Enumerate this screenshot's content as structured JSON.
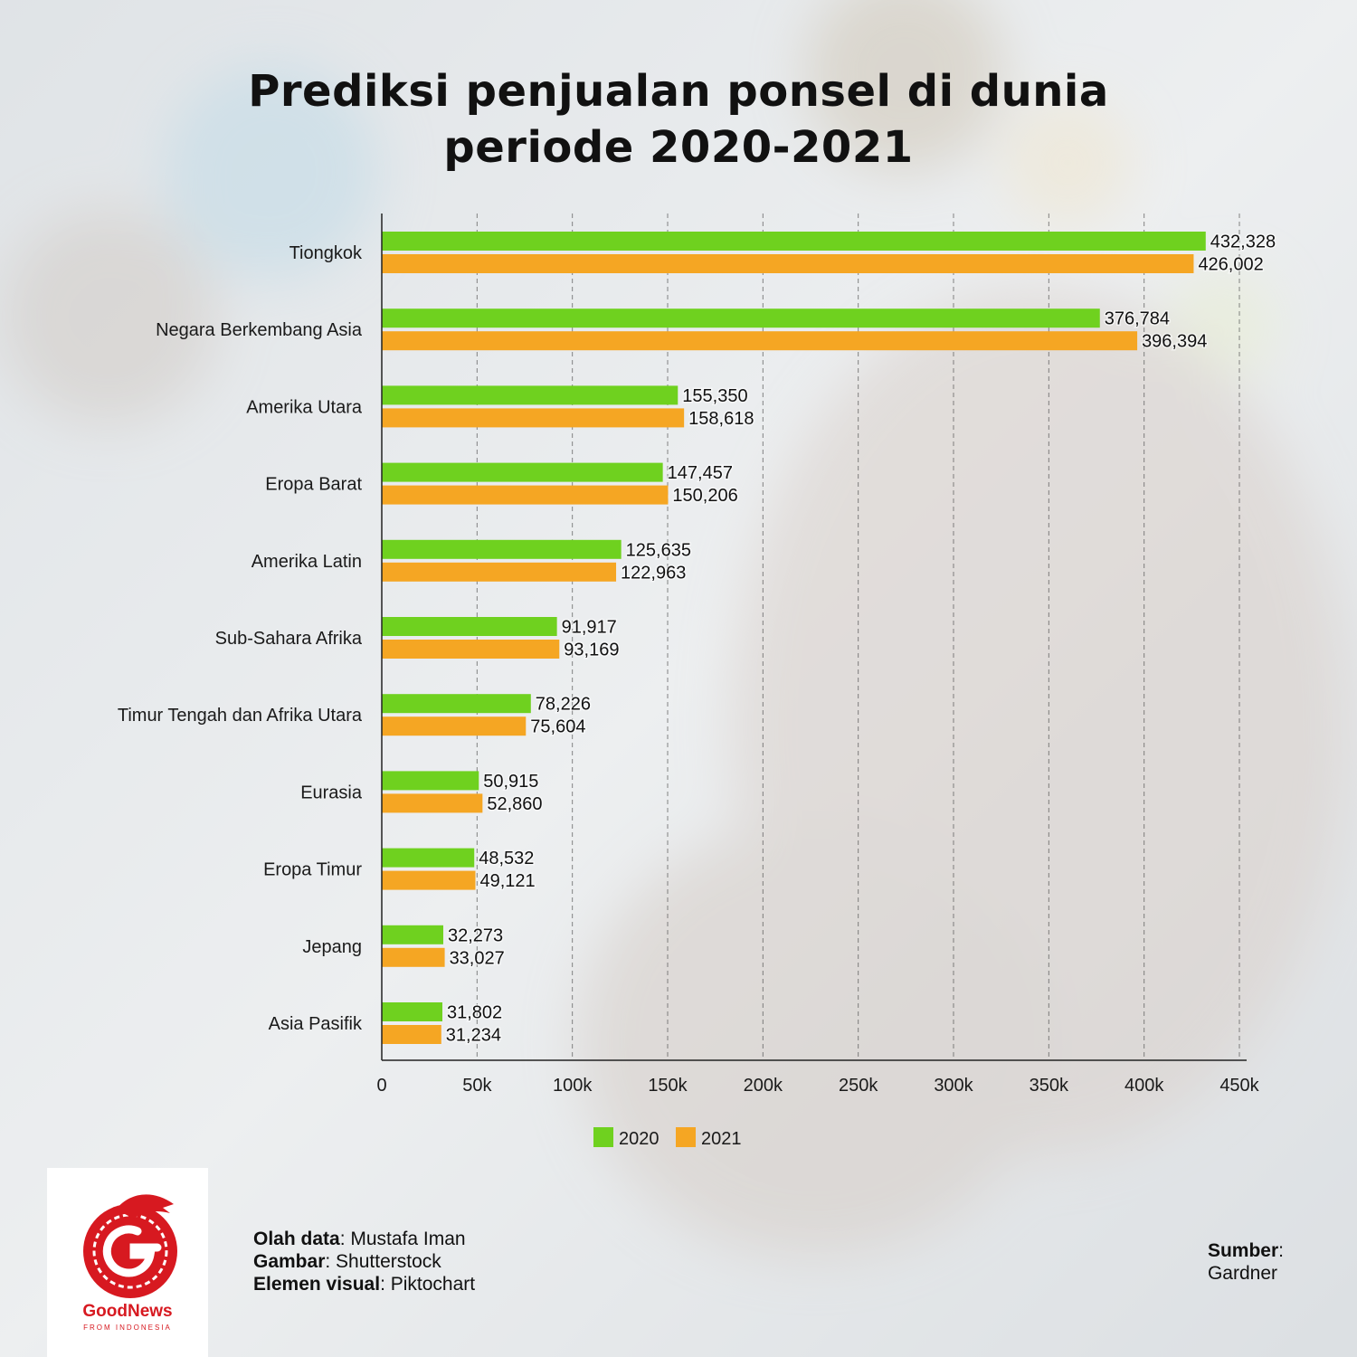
{
  "title_line1": "Prediksi penjualan ponsel di dunia",
  "title_line2": "periode 2020-2021",
  "colors": {
    "series_2020": "#6fd11f",
    "series_2021": "#f5a623",
    "logo_red": "#d71920"
  },
  "chart_data": {
    "type": "bar",
    "orientation": "horizontal",
    "categories": [
      "Tiongkok",
      "Negara Berkembang Asia",
      "Amerika Utara",
      "Eropa Barat",
      "Amerika Latin",
      "Sub-Sahara Afrika",
      "Timur Tengah dan Afrika Utara",
      "Eurasia",
      "Eropa Timur",
      "Jepang",
      "Asia Pasifik"
    ],
    "series": [
      {
        "name": "2020",
        "values": [
          432328,
          376784,
          155350,
          147457,
          125635,
          91917,
          78226,
          50915,
          48532,
          32273,
          31802
        ],
        "labels": [
          "432,328",
          "376,784",
          "155,350",
          "147,457",
          "125,635",
          "91,917",
          "78,226",
          "50,915",
          "48,532",
          "32,273",
          "31,802"
        ]
      },
      {
        "name": "2021",
        "values": [
          426002,
          396394,
          158618,
          150206,
          122963,
          93169,
          75604,
          52860,
          49121,
          33027,
          31234
        ],
        "labels": [
          "426,002",
          "396,394",
          "158,618",
          "150,206",
          "122,963",
          "93,169",
          "75,604",
          "52,860",
          "49,121",
          "33,027",
          "31,234"
        ]
      }
    ],
    "xlim": [
      0,
      450000
    ],
    "xticks": [
      0,
      50000,
      100000,
      150000,
      200000,
      250000,
      300000,
      350000,
      400000,
      450000
    ],
    "xtick_labels": [
      "0",
      "50k",
      "100k",
      "150k",
      "200k",
      "250k",
      "300k",
      "350k",
      "400k",
      "450k"
    ],
    "grid": "vertical dashed",
    "legend": "bottom-center"
  },
  "logo": {
    "name": "GoodNews",
    "subtitle": "FROM INDONESIA"
  },
  "credits": [
    {
      "key": "Olah data",
      "value": "Mustafa Iman"
    },
    {
      "key": "Gambar",
      "value": "Shutterstock"
    },
    {
      "key": "Elemen visual",
      "value": "Piktochart"
    }
  ],
  "source": {
    "key": "Sumber",
    "value": "Gardner"
  }
}
